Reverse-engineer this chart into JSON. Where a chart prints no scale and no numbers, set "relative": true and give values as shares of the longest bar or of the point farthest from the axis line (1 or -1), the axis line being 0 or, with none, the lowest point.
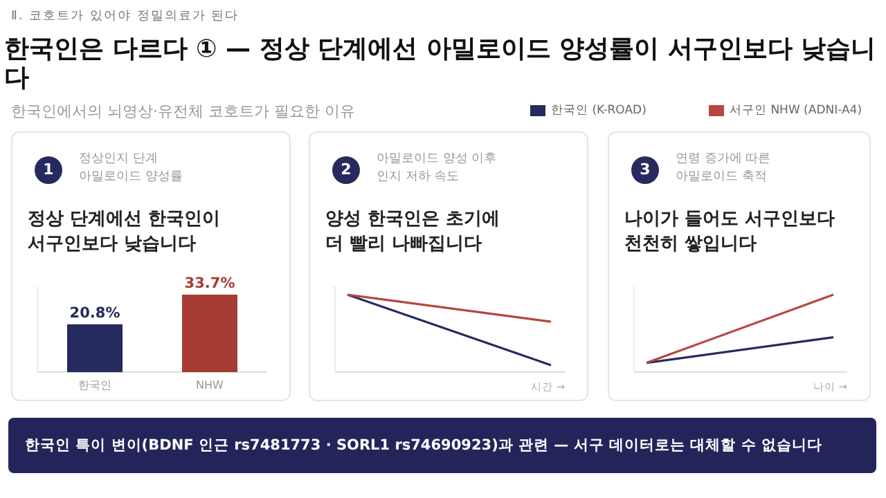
{
  "chart_data": [
    {
      "type": "other",
      "title": "한국인은 다르다 ① — 정상 단계에선 아밀로이드 양성률이 서구인보다 낮습니다",
      "subtitle": "한국인에서의 뇌영상·유전체 코호트가 필요한 이유",
      "annotations": [
        "Ⅱ. 코호트가 있어야 정밀의료가 된다",
        "한국인 특이 변이(BDNF 인근 rs7481773 · SORL1 rs74690923)과 관련 — 서구 데이터로는 대체할 수 없습니다"
      ]
    },
    {
      "type": "bar",
      "title": "정상 단계에선 한국인이\n서구인보다 낮습니다",
      "subtitle": "정상인지 단계\n아밀로이드 양성률",
      "annotations": [
        "1"
      ],
      "categories": [
        "한국인",
        "NHW"
      ],
      "values": [
        20.8,
        33.7
      ],
      "colors": [
        "#262a5e",
        "#a63b33"
      ],
      "value_labels": [
        "20.8%",
        "33.7%"
      ]
    },
    {
      "type": "line",
      "title": "양성 한국인은 초기에\n더 빨리 나빠집니다",
      "subtitle": "아밀로이드 양성 이후\n인지 저하 속도",
      "annotations": [
        "2"
      ],
      "xlabel": "시간 →",
      "relative": true,
      "categories": [
        null,
        null
      ],
      "legend": "top right",
      "series": [
        {
          "name": "한국인 (K-ROAD)",
          "color": "#262a5e",
          "values": [
            1,
            0.09
          ]
        },
        {
          "name": "서구인 NHW (ADNI-A4)",
          "color": "#b5473f",
          "values": [
            1,
            0.65
          ]
        }
      ]
    },
    {
      "type": "line",
      "title": "나이가 들어도 서구인보다\n천천히 쌓입니다",
      "subtitle": "연령 증가에 따른\n아밀로이드 축적",
      "annotations": [
        "3"
      ],
      "xlabel": "나이 →",
      "relative": true,
      "categories": [
        null,
        null
      ],
      "series": [
        {
          "color": "#262a5e",
          "values": [
            0.12,
            0.45
          ]
        },
        {
          "color": "#b5473f",
          "values": [
            0.12,
            1
          ]
        }
      ]
    }
  ]
}
